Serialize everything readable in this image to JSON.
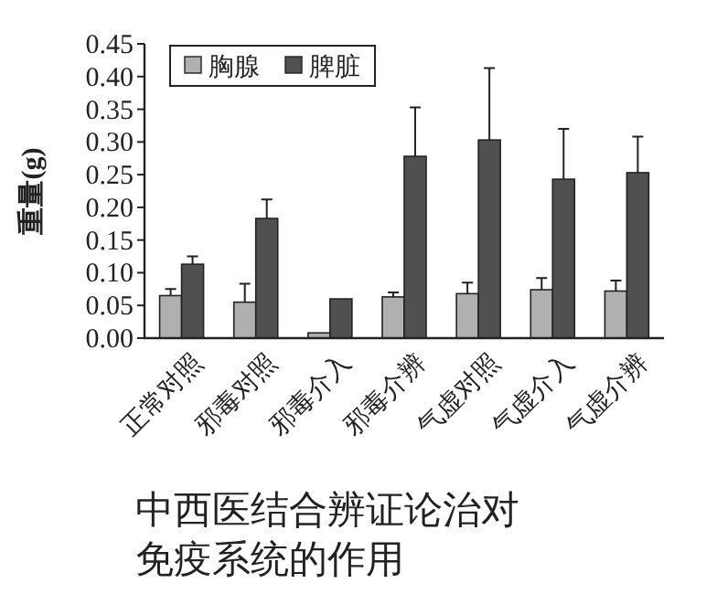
{
  "chart_data": {
    "type": "bar",
    "title": "中西医结合辨证论治对免疫系统的作用",
    "ylabel": "重量(g)",
    "categories": [
      "正常对照",
      "邪毒对照",
      "邪毒介入",
      "邪毒介辨",
      "气虚对照",
      "气虚介入",
      "气虚介辨"
    ],
    "series": [
      {
        "name": "胸腺",
        "color": "#b0b0b0",
        "values": [
          0.065,
          0.055,
          0.008,
          0.063,
          0.068,
          0.074,
          0.072
        ],
        "errors": [
          [
            0.065,
            0.075
          ],
          [
            0.055,
            0.083
          ],
          null,
          [
            0.063,
            0.07
          ],
          [
            0.068,
            0.085
          ],
          [
            0.074,
            0.092
          ],
          [
            0.072,
            0.088
          ]
        ]
      },
      {
        "name": "脾脏",
        "color": "#505050",
        "values": [
          0.113,
          0.183,
          0.06,
          0.278,
          0.303,
          0.243,
          0.253
        ],
        "errors": [
          [
            0.113,
            0.125
          ],
          [
            0.183,
            0.212
          ],
          null,
          [
            0.278,
            0.353
          ],
          [
            0.303,
            0.413
          ],
          [
            0.243,
            0.32
          ],
          [
            0.253,
            0.308
          ]
        ]
      }
    ],
    "ylim": [
      0,
      0.45
    ],
    "yticks": [
      {
        "value": 0,
        "label": "0.00"
      },
      {
        "value": 0.05,
        "label": "0.05"
      },
      {
        "value": 0.1,
        "label": "0.10"
      },
      {
        "value": 0.15,
        "label": "0.15"
      },
      {
        "value": 0.2,
        "label": "0.20"
      },
      {
        "value": 0.25,
        "label": "0.25"
      },
      {
        "value": 0.3,
        "label": "0.30"
      },
      {
        "value": 0.35,
        "label": "0.35"
      },
      {
        "value": 0.4,
        "label": "0.40"
      },
      {
        "value": 0.45,
        "label": "0.45"
      }
    ],
    "legend": "top left",
    "grid": false
  }
}
